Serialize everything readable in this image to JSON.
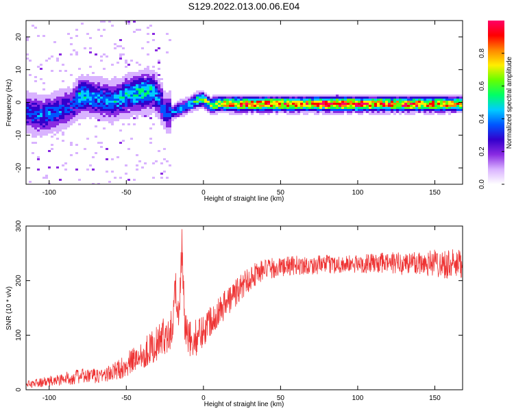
{
  "title": "S129.2022.013.00.06.E04",
  "chart_data": [
    {
      "type": "heatmap",
      "xlabel": "Height of straight line (km)",
      "ylabel": "Frequency (Hz)",
      "xlim": [
        -115,
        168
      ],
      "ylim": [
        -25,
        25
      ],
      "xticks": [
        -100,
        -50,
        0,
        50,
        100,
        150
      ],
      "yticks": [
        -20,
        -10,
        0,
        10,
        20
      ],
      "colorbar": {
        "label": "Normalized spectral amplitude",
        "range": [
          0,
          1
        ],
        "ticks": [
          0.0,
          0.2,
          0.4,
          0.6,
          0.8
        ],
        "tick_labels": [
          "0.0",
          "0.2",
          "0.4",
          "0.6",
          "0.8"
        ],
        "colormap": [
          "#ffffff",
          "#d9b3ff",
          "#8a2be2",
          "#3300cc",
          "#0055ff",
          "#00ccff",
          "#00ff66",
          "#66ff00",
          "#ffee00",
          "#ff8800",
          "#ff0000",
          "#ff0066"
        ]
      },
      "ridge": {
        "x": [
          -115,
          -105,
          -95,
          -85,
          -80,
          -70,
          -60,
          -50,
          -40,
          -33,
          -28,
          -25,
          -20,
          -15,
          -10,
          -5,
          0,
          5,
          10,
          20,
          40,
          60,
          80,
          100,
          120,
          140,
          160,
          168
        ],
        "y": [
          -3,
          -4,
          -3,
          -1,
          2,
          1.5,
          0,
          2,
          3,
          3.5,
          0.5,
          -3,
          -3,
          -2,
          -1,
          0.5,
          1,
          -1,
          -0.5,
          -0.5,
          -0.5,
          -0.5,
          -0.5,
          -0.5,
          -0.5,
          -0.5,
          -0.5,
          -0.5
        ],
        "peak_amplitude": [
          0.3,
          0.35,
          0.35,
          0.3,
          0.45,
          0.4,
          0.4,
          0.45,
          0.5,
          0.45,
          0.35,
          0.3,
          0.35,
          0.4,
          0.45,
          0.55,
          0.6,
          0.6,
          0.7,
          0.85,
          0.85,
          0.85,
          0.9,
          0.9,
          0.85,
          0.85,
          0.8,
          0.75
        ]
      }
    },
    {
      "type": "line",
      "xlabel": "Height of straight line (km)",
      "ylabel": "SNR (10 * v/v)",
      "xlim": [
        -115,
        168
      ],
      "ylim": [
        0,
        300
      ],
      "xticks": [
        -100,
        -50,
        0,
        50,
        100,
        150
      ],
      "yticks": [
        0,
        100,
        200,
        300
      ],
      "color": "#ee3333",
      "series": [
        {
          "x": [
            -115,
            -100,
            -90,
            -80,
            -70,
            -60,
            -50,
            -40,
            -30,
            -25,
            -20,
            -18,
            -16,
            -14,
            -12,
            -10,
            -5,
            0,
            5,
            10,
            15,
            20,
            25,
            30,
            35,
            40,
            50,
            60,
            70,
            80,
            90,
            100,
            110,
            120,
            130,
            140,
            150,
            160,
            168
          ],
          "y": [
            10,
            15,
            20,
            25,
            25,
            30,
            45,
            65,
            85,
            100,
            115,
            200,
            120,
            260,
            110,
            90,
            95,
            110,
            130,
            145,
            160,
            175,
            190,
            205,
            215,
            220,
            225,
            228,
            228,
            230,
            230,
            230,
            232,
            232,
            232,
            233,
            233,
            230,
            228
          ],
          "noise": [
            6,
            10,
            12,
            14,
            14,
            16,
            22,
            28,
            32,
            35,
            38,
            40,
            40,
            40,
            40,
            38,
            34,
            32,
            30,
            28,
            28,
            27,
            26,
            24,
            22,
            20,
            18,
            18,
            17,
            17,
            17,
            17,
            18,
            20,
            22,
            24,
            26,
            28,
            28
          ]
        }
      ]
    }
  ]
}
